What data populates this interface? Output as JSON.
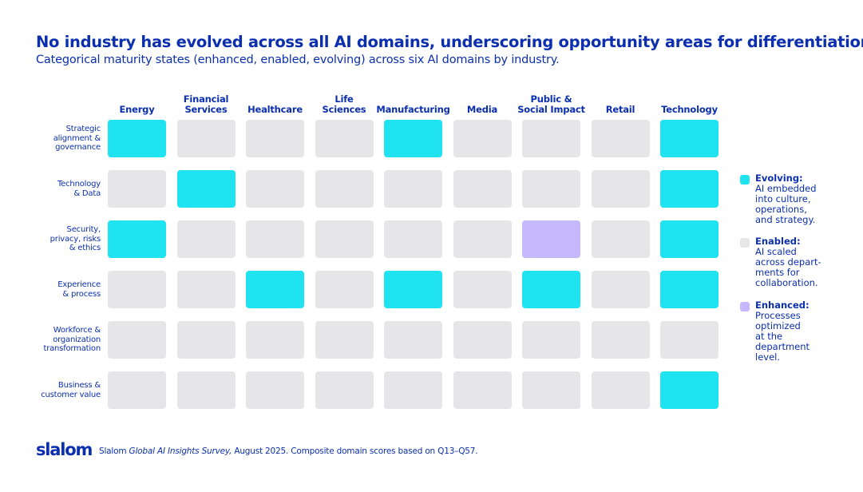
{
  "colors": {
    "evolving": "#1fe3f1",
    "enabled": "#e6e6e8",
    "enhanced": "#c5b9fb",
    "text": "#0b2fae"
  },
  "chart_data": {
    "type": "heatmap",
    "title": "No industry has evolved across all AI domains, underscoring opportunity areas for differentiation.",
    "subtitle": "Categorical maturity states (enhanced, enabled, evolving) across six AI domains by industry.",
    "columns": [
      "Energy",
      "Financial\nServices",
      "Healthcare",
      "Life\nSciences",
      "Manufacturing",
      "Media",
      "Public &\nSocial Impact",
      "Retail",
      "Technology"
    ],
    "rows": [
      "Strategic\nalignment &\ngovernance",
      "Technology\n& Data",
      "Security,\nprivacy, risks\n& ethics",
      "Experience\n& process",
      "Workforce &\norganization\ntransformation",
      "Business &\ncustomer value"
    ],
    "values": [
      [
        "evolving",
        "enabled",
        "enabled",
        "enabled",
        "evolving",
        "enabled",
        "enabled",
        "enabled",
        "evolving"
      ],
      [
        "enabled",
        "evolving",
        "enabled",
        "enabled",
        "enabled",
        "enabled",
        "enabled",
        "enabled",
        "evolving"
      ],
      [
        "evolving",
        "enabled",
        "enabled",
        "enabled",
        "enabled",
        "enabled",
        "enhanced",
        "enabled",
        "evolving"
      ],
      [
        "enabled",
        "enabled",
        "evolving",
        "enabled",
        "evolving",
        "enabled",
        "evolving",
        "enabled",
        "evolving"
      ],
      [
        "enabled",
        "enabled",
        "enabled",
        "enabled",
        "enabled",
        "enabled",
        "enabled",
        "enabled",
        "enabled"
      ],
      [
        "enabled",
        "enabled",
        "enabled",
        "enabled",
        "enabled",
        "enabled",
        "enabled",
        "enabled",
        "evolving"
      ]
    ],
    "legend": [
      {
        "key": "evolving",
        "label": "Evolving:",
        "desc": "AI embedded\ninto culture,\noperations,\nand strategy."
      },
      {
        "key": "enabled",
        "label": "Enabled:",
        "desc": "AI scaled\nacross depart-\nments for\ncollaboration."
      },
      {
        "key": "enhanced",
        "label": "Enhanced:",
        "desc": "Processes\noptimized\nat the\ndepartment\nlevel."
      }
    ],
    "legend_position": "right"
  },
  "footer": {
    "logo": "slalom",
    "source_prefix": "Slalom ",
    "source_title": "Global AI Insights Survey,",
    "source_suffix": " August 2025. Composite domain scores based on Q13–Q57."
  }
}
